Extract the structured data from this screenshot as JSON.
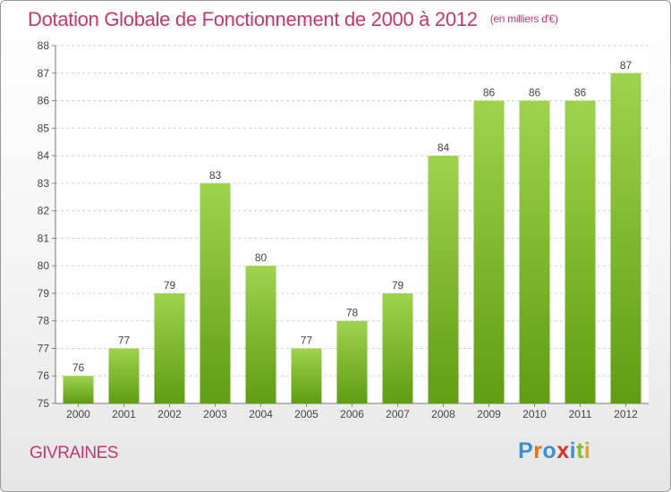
{
  "header": {
    "title": "Dotation Globale de Fonctionnement de 2000 à 2012",
    "unit": "(en milliers d'€)"
  },
  "footer": {
    "place": "GIVRAINES",
    "logo_text": "Proxiti"
  },
  "colors": {
    "accent": "#c4386a",
    "bar_top": "#9ed34e",
    "bar_bottom": "#5f9d12",
    "logo": [
      "#3a8fd6",
      "#e8701a",
      "#3a8fd6",
      "#d8342c",
      "#3a8fd6",
      "#7cbf2b",
      "#e8a21a"
    ]
  },
  "chart_data": {
    "type": "bar",
    "categories": [
      "2000",
      "2001",
      "2002",
      "2003",
      "2004",
      "2005",
      "2006",
      "2007",
      "2008",
      "2009",
      "2010",
      "2011",
      "2012"
    ],
    "values": [
      76,
      77,
      79,
      83,
      80,
      77,
      78,
      79,
      84,
      86,
      86,
      86,
      87
    ],
    "ylim": [
      75,
      88
    ],
    "yticks": [
      75,
      76,
      77,
      78,
      79,
      80,
      81,
      82,
      83,
      84,
      85,
      86,
      87,
      88
    ],
    "grid": true,
    "data_labels": true
  }
}
